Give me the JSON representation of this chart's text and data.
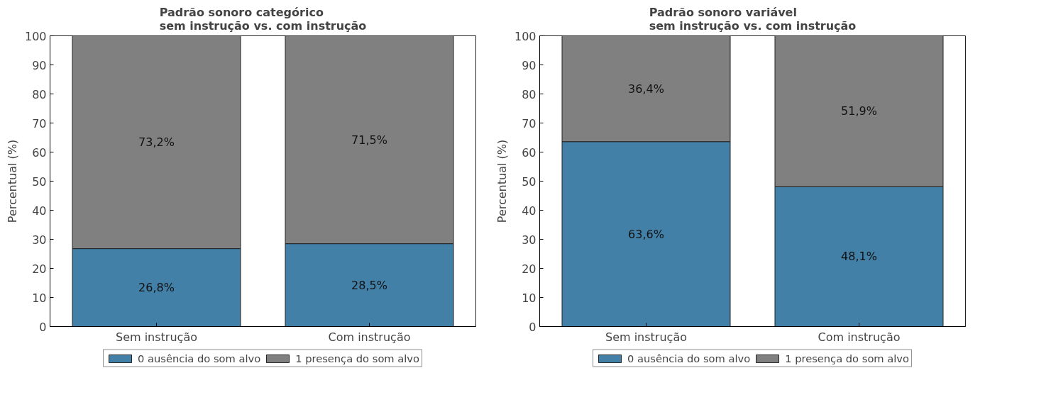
{
  "chart_data": [
    {
      "type": "bar",
      "stacked": true,
      "title": "Padrão sonoro categórico\nsem instrução vs. com instrução",
      "ylabel": "Percentual (%)",
      "categories": [
        "Sem instrução",
        "Com instrução"
      ],
      "ylim": [
        0,
        100
      ],
      "yticks": [
        0,
        10,
        20,
        30,
        40,
        50,
        60,
        70,
        80,
        90,
        100
      ],
      "grid": false,
      "legend": "bottom",
      "series": [
        {
          "name": "0 ausência do som alvo",
          "color": "#4280a8",
          "values": [
            26.8,
            28.5
          ],
          "value_labels": [
            "26,8%",
            "28,5%"
          ]
        },
        {
          "name": "1 presença do som alvo",
          "color": "#808080",
          "values": [
            73.2,
            71.5
          ],
          "value_labels": [
            "73,2%",
            "71,5%"
          ]
        }
      ]
    },
    {
      "type": "bar",
      "stacked": true,
      "title": "Padrão sonoro variável\nsem instrução vs. com instrução",
      "ylabel": "Percentual (%)",
      "categories": [
        "Sem instrução",
        "Com instrução"
      ],
      "ylim": [
        0,
        100
      ],
      "yticks": [
        0,
        10,
        20,
        30,
        40,
        50,
        60,
        70,
        80,
        90,
        100
      ],
      "grid": false,
      "legend": "bottom",
      "series": [
        {
          "name": "0 ausência do som alvo",
          "color": "#4280a8",
          "values": [
            63.6,
            48.1
          ],
          "value_labels": [
            "63,6%",
            "48,1%"
          ]
        },
        {
          "name": "1 presença do som alvo",
          "color": "#808080",
          "values": [
            36.4,
            51.9
          ],
          "value_labels": [
            "36,4%",
            "51,9%"
          ]
        }
      ]
    }
  ]
}
